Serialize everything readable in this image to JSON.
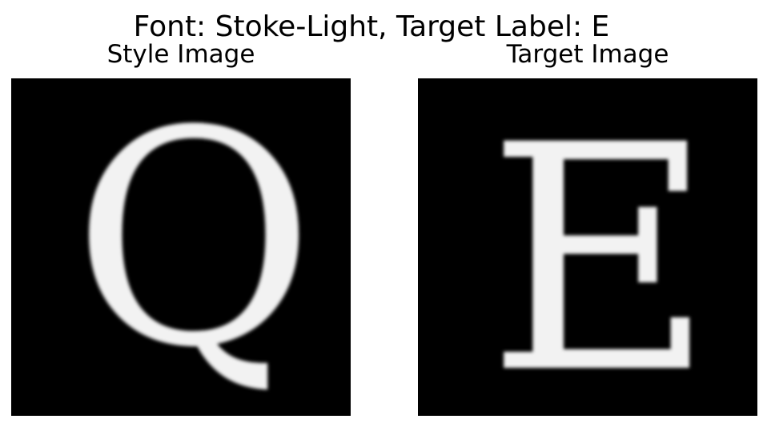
{
  "figure": {
    "suptitle": "Font: Stoke-Light, Target Label: E"
  },
  "panels": [
    {
      "title": "Style Image",
      "glyph": "Q"
    },
    {
      "title": "Target Image",
      "glyph": "E"
    }
  ],
  "colors": {
    "background": "#ffffff",
    "image_background": "#000000",
    "glyph": "#f2f2f2"
  }
}
